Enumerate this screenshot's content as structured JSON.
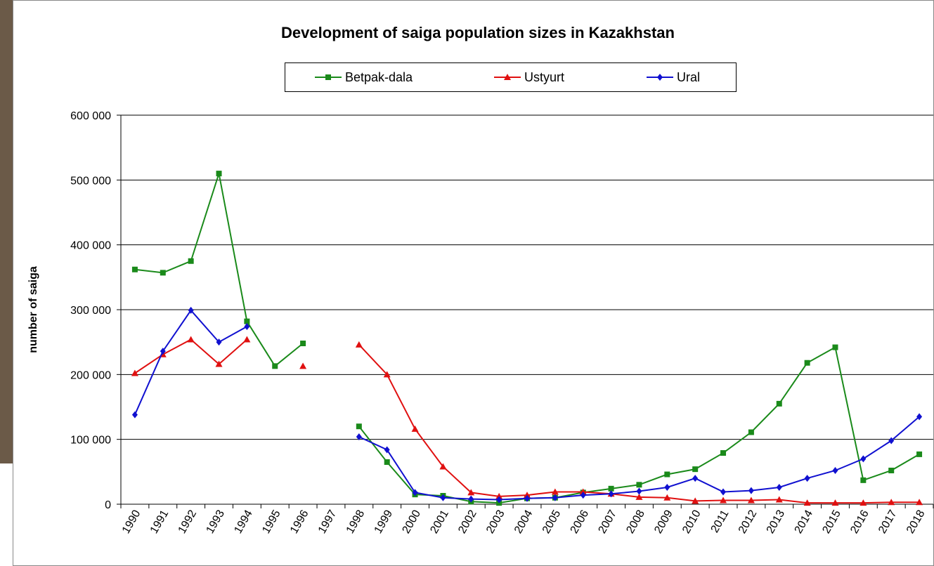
{
  "chart_data": {
    "type": "line",
    "title": "Development of saiga population sizes in Kazakhstan",
    "y_label": "number of saiga",
    "categories": [
      "1990",
      "1991",
      "1992",
      "1993",
      "1994",
      "1995",
      "1996",
      "1997",
      "1998",
      "1999",
      "2000",
      "2001",
      "2002",
      "2003",
      "2004",
      "2005",
      "2006",
      "2007",
      "2008",
      "2009",
      "2010",
      "2011",
      "2012",
      "2013",
      "2014",
      "2015",
      "2016",
      "2017",
      "2018"
    ],
    "series": [
      {
        "name": "Betpak-dala",
        "color": "#1a8a1a",
        "marker": "square",
        "values": [
          362000,
          357000,
          375000,
          510000,
          282000,
          213000,
          248000,
          null,
          120000,
          65000,
          15000,
          13000,
          4000,
          2000,
          9000,
          10000,
          18000,
          24000,
          30000,
          46000,
          54000,
          79000,
          111000,
          155000,
          218000,
          242000,
          37000,
          52000,
          77000
        ]
      },
      {
        "name": "Ustyurt",
        "color": "#e01010",
        "marker": "triangle",
        "values": [
          202000,
          231000,
          254000,
          216000,
          254000,
          null,
          213000,
          null,
          246000,
          200000,
          116000,
          58000,
          18000,
          12000,
          14000,
          19000,
          19000,
          16000,
          11000,
          10000,
          5000,
          6000,
          6000,
          7000,
          2000,
          2000,
          2000,
          3000,
          3000
        ]
      },
      {
        "name": "Ural",
        "color": "#1010d0",
        "marker": "diamond",
        "values": [
          138000,
          236000,
          299000,
          250000,
          274000,
          null,
          null,
          null,
          104000,
          84000,
          18000,
          10000,
          8000,
          7000,
          9000,
          10000,
          14000,
          16000,
          20000,
          26000,
          40000,
          19000,
          21000,
          26000,
          40000,
          52000,
          70000,
          98000,
          135000
        ]
      }
    ],
    "ylim": [
      0,
      600000
    ],
    "yticks": [
      0,
      {
        "value": 100000,
        "label": "100 000"
      },
      {
        "value": 200000,
        "label": "200 000"
      },
      {
        "value": 300000,
        "label": "300 000"
      },
      {
        "value": 400000,
        "label": "400 000"
      },
      {
        "value": 500000,
        "label": "500 000"
      },
      {
        "value": 600000,
        "label": "600 000"
      }
    ],
    "grid": true,
    "legend": "top"
  }
}
